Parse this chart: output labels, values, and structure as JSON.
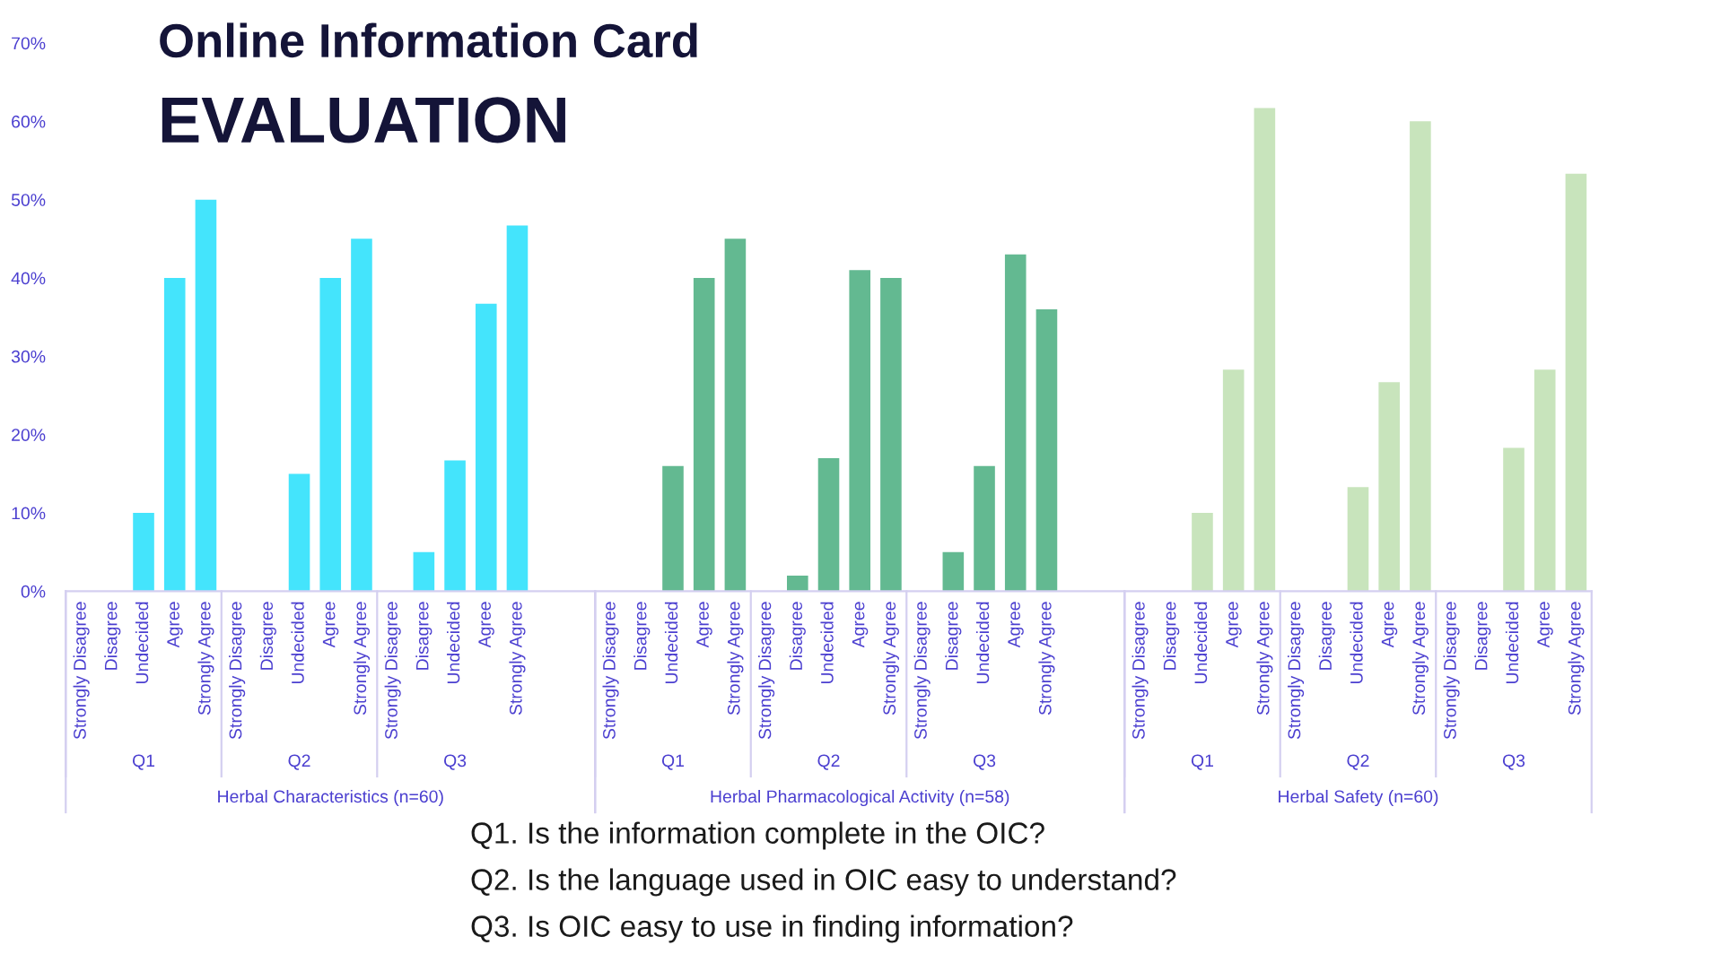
{
  "chart_data": {
    "type": "bar",
    "title": "Online Information Card",
    "subtitle": "EVALUATION",
    "categories": [
      "Strongly Disagree",
      "Disagree",
      "Undecided",
      "Agree",
      "Strongly Agree",
      "Strongly Disagree",
      "Disagree",
      "Undecided",
      "Agree",
      "Strongly Agree",
      "Strongly Disagree",
      "Disagree",
      "Undecided",
      "Agree",
      "Strongly Agree",
      null,
      null,
      "Strongly Disagree",
      "Disagree",
      "Undecided",
      "Agree",
      "Strongly Agree",
      "Strongly Disagree",
      "Disagree",
      "Undecided",
      "Agree",
      "Strongly Agree",
      "Strongly Disagree",
      "Disagree",
      "Undecided",
      "Agree",
      "Strongly Agree",
      null,
      null,
      "Strongly Disagree",
      "Disagree",
      "Undecided",
      "Agree",
      "Strongly Agree",
      "Strongly Disagree",
      "Disagree",
      "Undecided",
      "Agree",
      "Strongly Agree",
      "Strongly Disagree",
      "Disagree",
      "Undecided",
      "Agree",
      "Strongly Agree"
    ],
    "series": [
      {
        "color": "#44e4fc",
        "values": [
          0,
          0,
          10,
          40,
          50,
          0,
          0,
          15,
          40,
          45,
          0,
          5,
          16.7,
          36.7,
          46.7,
          null,
          null,
          null,
          null,
          null,
          null,
          null,
          null,
          null,
          null,
          null,
          null,
          null,
          null,
          null,
          null,
          null,
          null,
          null,
          null,
          null,
          null,
          null,
          null,
          null,
          null,
          null,
          null,
          null,
          null,
          null,
          null,
          null,
          null
        ]
      },
      {
        "color": "#63b991",
        "values": [
          null,
          null,
          null,
          null,
          null,
          null,
          null,
          null,
          null,
          null,
          null,
          null,
          null,
          null,
          null,
          null,
          null,
          0,
          0,
          16,
          40,
          45,
          0,
          2,
          17,
          41,
          40,
          0,
          5,
          16,
          43,
          36,
          null,
          null,
          null,
          null,
          null,
          null,
          null,
          null,
          null,
          null,
          null,
          null,
          null,
          null,
          null,
          null,
          null
        ]
      },
      {
        "color": "#c8e4bc",
        "values": [
          null,
          null,
          null,
          null,
          null,
          null,
          null,
          null,
          null,
          null,
          null,
          null,
          null,
          null,
          null,
          null,
          null,
          null,
          null,
          null,
          null,
          null,
          null,
          null,
          null,
          null,
          null,
          null,
          null,
          null,
          null,
          null,
          null,
          null,
          0,
          0,
          10,
          28.3,
          61.7,
          0,
          0,
          13.3,
          26.7,
          60,
          0,
          0,
          18.3,
          28.3,
          53.3
        ]
      }
    ],
    "ylim": [
      0,
      70
    ],
    "yticks": [
      {
        "value": 0,
        "label": "0%"
      },
      {
        "value": 10,
        "label": "10%"
      },
      {
        "value": 20,
        "label": "20%"
      },
      {
        "value": 30,
        "label": "30%"
      },
      {
        "value": 40,
        "label": "40%"
      },
      {
        "value": 50,
        "label": "50%"
      },
      {
        "value": 60,
        "label": "60%"
      },
      {
        "value": 70,
        "label": "70%"
      }
    ],
    "grid": false,
    "annotations": [
      "Q1",
      "Q2",
      "Q3",
      "Q1",
      "Q2",
      "Q3",
      "Q1",
      "Q2",
      "Q3",
      "Herbal Characteristics (n=60)",
      "Herbal Pharmacological Activity (n=58)",
      "Herbal Safety (n=60)",
      "Q1. Is the information complete in the OIC?",
      "Q2. Is the language used in OIC easy to understand?",
      "Q3. Is OIC easy to use in finding information?"
    ]
  }
}
